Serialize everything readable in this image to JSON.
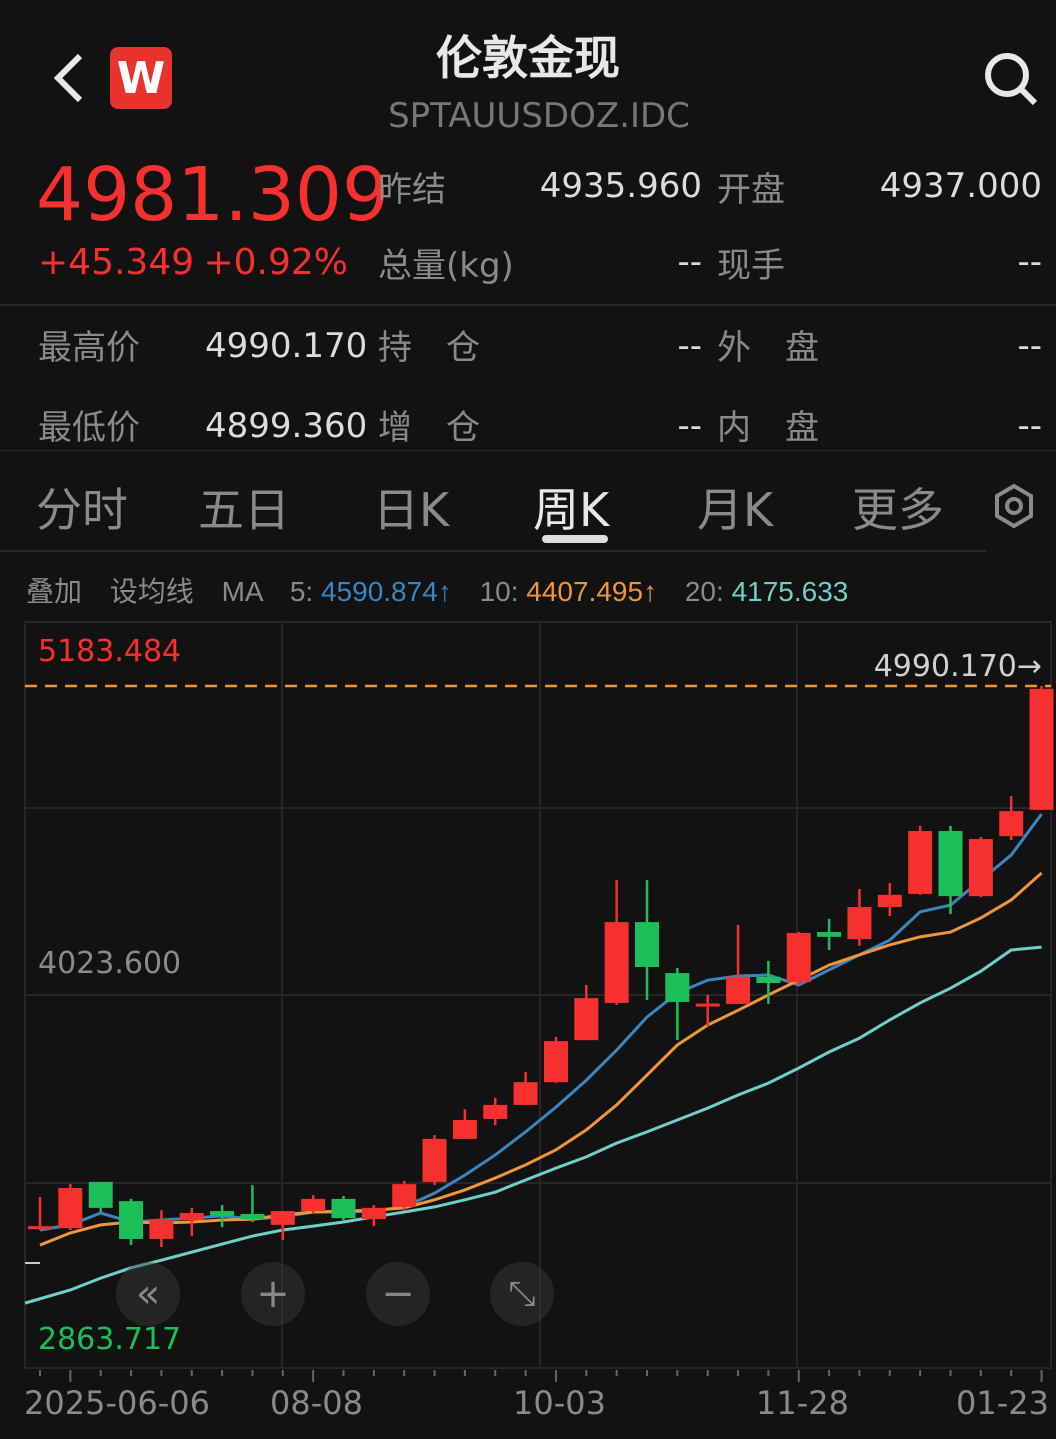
{
  "header": {
    "title": "伦敦金现",
    "subtitle": "SPTAUUSDOZ.IDC",
    "logo_text": "W"
  },
  "quote": {
    "price": "4981.309",
    "change": "+45.349",
    "change_pct": "+0.92%",
    "prev_close_label": "昨结",
    "prev_close": "4935.960",
    "open_label": "开盘",
    "open": "4937.000",
    "volume_label": "总量(kg)",
    "volume": "--",
    "current_hand_label": "现手",
    "current_hand": "--",
    "high_label": "最高价",
    "high": "4990.170",
    "position_label": "持　仓",
    "position": "--",
    "outer_label": "外　盘",
    "outer": "--",
    "low_label": "最低价",
    "low": "4899.360",
    "add_position_label": "增　仓",
    "add_position": "--",
    "inner_label": "内　盘",
    "inner": "--"
  },
  "tabs": [
    {
      "label": "分时",
      "active": false
    },
    {
      "label": "五日",
      "active": false
    },
    {
      "label": "日K",
      "active": false
    },
    {
      "label": "周K",
      "active": true
    },
    {
      "label": "月K",
      "active": false
    },
    {
      "label": "更多",
      "active": false
    }
  ],
  "ma_bar": {
    "overlay": "叠加",
    "set_ma": "设均线",
    "ma": "MA",
    "ma5_label": "5:",
    "ma5": "4590.874↑",
    "ma10_label": "10:",
    "ma10": "4407.495↑",
    "ma20_label": "20:",
    "ma20": "4175.633"
  },
  "colors": {
    "up": "#f6302e",
    "down": "#1dbf58",
    "ma5": "#3a86c0",
    "ma10": "#f0953a",
    "ma20": "#6fd0c8",
    "high_line": "#f0953a"
  },
  "chart_data": {
    "type": "candlestick",
    "ylim": [
      2863.717,
      5183.484
    ],
    "y_labels": {
      "top": "5183.484",
      "mid": "4023.600",
      "bottom": "2863.717"
    },
    "high_marker": "4990.170→",
    "x_labels": [
      "2025-06-06",
      "08-08",
      "10-03",
      "11-28",
      "01-23"
    ],
    "candles": [
      [
        3300,
        3397,
        3294,
        3306
      ],
      [
        3300,
        3437,
        3294,
        3425
      ],
      [
        3444,
        3444,
        3350,
        3363
      ],
      [
        3384,
        3391,
        3247,
        3266
      ],
      [
        3266,
        3356,
        3241,
        3328
      ],
      [
        3325,
        3363,
        3275,
        3347
      ],
      [
        3353,
        3372,
        3303,
        3338
      ],
      [
        3344,
        3434,
        3319,
        3328
      ],
      [
        3310,
        3353,
        3263,
        3353
      ],
      [
        3353,
        3403,
        3347,
        3391
      ],
      [
        3391,
        3400,
        3325,
        3331
      ],
      [
        3328,
        3372,
        3306,
        3363
      ],
      [
        3366,
        3447,
        3356,
        3437
      ],
      [
        3444,
        3590,
        3434,
        3578
      ],
      [
        3578,
        3671,
        3578,
        3637
      ],
      [
        3640,
        3706,
        3621,
        3684
      ],
      [
        3684,
        3787,
        3684,
        3755
      ],
      [
        3755,
        3896,
        3752,
        3883
      ],
      [
        3886,
        4058,
        3886,
        4017
      ],
      [
        4002,
        4385,
        3996,
        4254
      ],
      [
        4254,
        4385,
        4011,
        4114
      ],
      [
        4095,
        4111,
        3886,
        4005
      ],
      [
        3996,
        4027,
        3930,
        4000
      ],
      [
        3999,
        4245,
        3999,
        4083
      ],
      [
        4083,
        4133,
        3999,
        4064
      ],
      [
        4067,
        4223,
        4058,
        4220
      ],
      [
        4223,
        4264,
        4167,
        4208
      ],
      [
        4201,
        4357,
        4180,
        4301
      ],
      [
        4301,
        4376,
        4273,
        4339
      ],
      [
        4342,
        4554,
        4339,
        4538
      ],
      [
        4538,
        4554,
        4279,
        4335
      ],
      [
        4335,
        4519,
        4332,
        4513
      ],
      [
        4522,
        4647,
        4510,
        4600
      ],
      [
        4604,
        4990.17,
        4604,
        4981.309
      ]
    ],
    "candle_fields": [
      "open",
      "high",
      "low",
      "close"
    ],
    "series": [
      {
        "name": "MA5",
        "values": [
          3294,
          3310,
          3347,
          3319,
          3325,
          3331,
          3338,
          3328,
          3335,
          3350,
          3350,
          3353,
          3366,
          3409,
          3465,
          3528,
          3600,
          3677,
          3761,
          3855,
          3958,
          4033,
          4073,
          4086,
          4089,
          4058,
          4105,
          4152,
          4198,
          4286,
          4307,
          4385,
          4463,
          4591
        ]
      },
      {
        "name": "MA10",
        "values": [
          3247,
          3285,
          3310,
          3319,
          3316,
          3319,
          3325,
          3328,
          3341,
          3350,
          3353,
          3356,
          3363,
          3388,
          3419,
          3456,
          3497,
          3544,
          3606,
          3684,
          3777,
          3871,
          3933,
          3979,
          4027,
          4073,
          4120,
          4152,
          4183,
          4208,
          4223,
          4267,
          4323,
          4407
        ]
      },
      {
        "name": "MA20",
        "values": [
          3066,
          3107,
          3144,
          3176,
          3200,
          3225,
          3250,
          3275,
          3294,
          3306,
          3319,
          3335,
          3350,
          3366,
          3388,
          3412,
          3450,
          3487,
          3522,
          3565,
          3600,
          3637,
          3674,
          3715,
          3752,
          3799,
          3849,
          3892,
          3949,
          4002,
          4048,
          4101,
          4167,
          4176
        ]
      }
    ]
  }
}
